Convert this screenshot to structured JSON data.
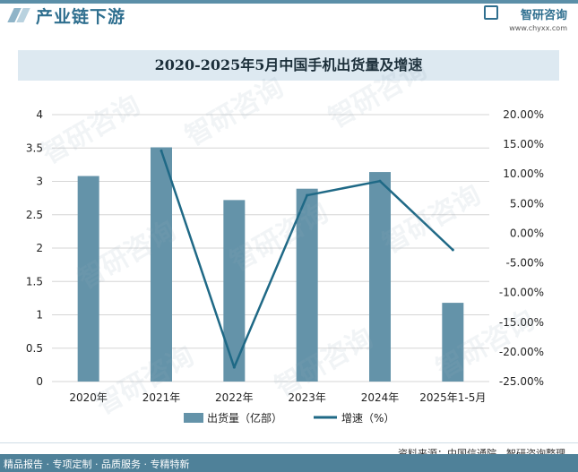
{
  "header": {
    "section_title": "产业链下游",
    "brand_name": "智研咨询",
    "brand_url": "www.chyxx.com"
  },
  "chart_data": {
    "type": "bar+line",
    "title": "2020-2025年5月中国手机出货量及增速",
    "categories": [
      "2020年",
      "2021年",
      "2022年",
      "2023年",
      "2024年",
      "2025年1-5月"
    ],
    "series": [
      {
        "name": "出货量（亿部）",
        "type": "bar",
        "axis": "left",
        "values": [
          3.08,
          3.51,
          2.72,
          2.89,
          3.14,
          1.18
        ]
      },
      {
        "name": "增速（%）",
        "type": "line",
        "axis": "right",
        "values": [
          null,
          13.9,
          -22.6,
          6.4,
          8.8,
          -2.8
        ]
      }
    ],
    "left_axis": {
      "ticks": [
        "0",
        "0.5",
        "1",
        "1.5",
        "2",
        "2.5",
        "3",
        "3.5",
        "4"
      ],
      "range": [
        0,
        4
      ]
    },
    "right_axis": {
      "ticks": [
        "-25.00%",
        "-20.00%",
        "-15.00%",
        "-10.00%",
        "-5.00%",
        "0.00%",
        "5.00%",
        "10.00%",
        "15.00%",
        "20.00%"
      ],
      "range": [
        -25,
        20
      ]
    },
    "legend_position": "bottom",
    "colors": {
      "bar": "#6493a9",
      "line": "#1f6986",
      "grid": "#d6d6d6"
    }
  },
  "watermark_text": "智研咨询",
  "footer": {
    "source": "资料来源：中国信通院、智研咨询整理",
    "items": "精品报告 · 专项定制 · 品质服务 · 专精特新"
  }
}
